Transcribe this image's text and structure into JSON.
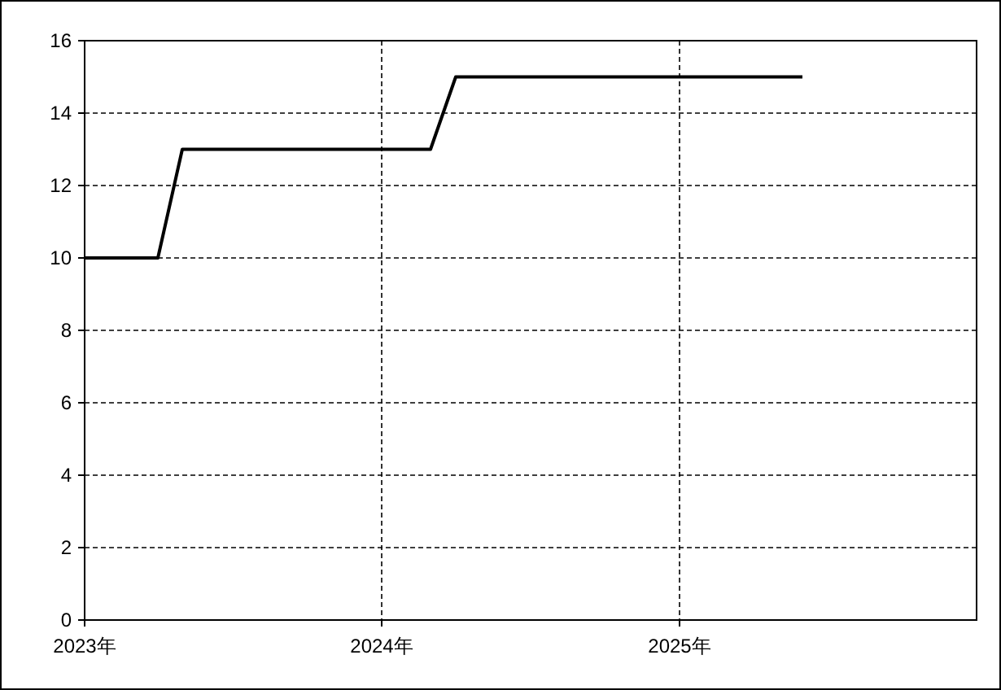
{
  "chart_data": {
    "type": "line",
    "x": [
      "2023-01",
      "2023-04",
      "2023-05",
      "2024-03",
      "2024-04",
      "2025-06"
    ],
    "series": [
      {
        "color": "#000000",
        "values": [
          10,
          10,
          13,
          13,
          15,
          15
        ]
      }
    ],
    "xlim": [
      "2023-01",
      "2026-01"
    ],
    "xticks": [
      {
        "value": "2023-01",
        "label": "2023年"
      },
      {
        "value": "2024-01",
        "label": "2024年"
      },
      {
        "value": "2025-01",
        "label": "2025年"
      }
    ],
    "ylim": [
      0,
      16
    ],
    "yticks": [
      0,
      2,
      4,
      6,
      8,
      10,
      12,
      14,
      16
    ],
    "grid": true,
    "line_style": "solid",
    "marker": "none"
  }
}
